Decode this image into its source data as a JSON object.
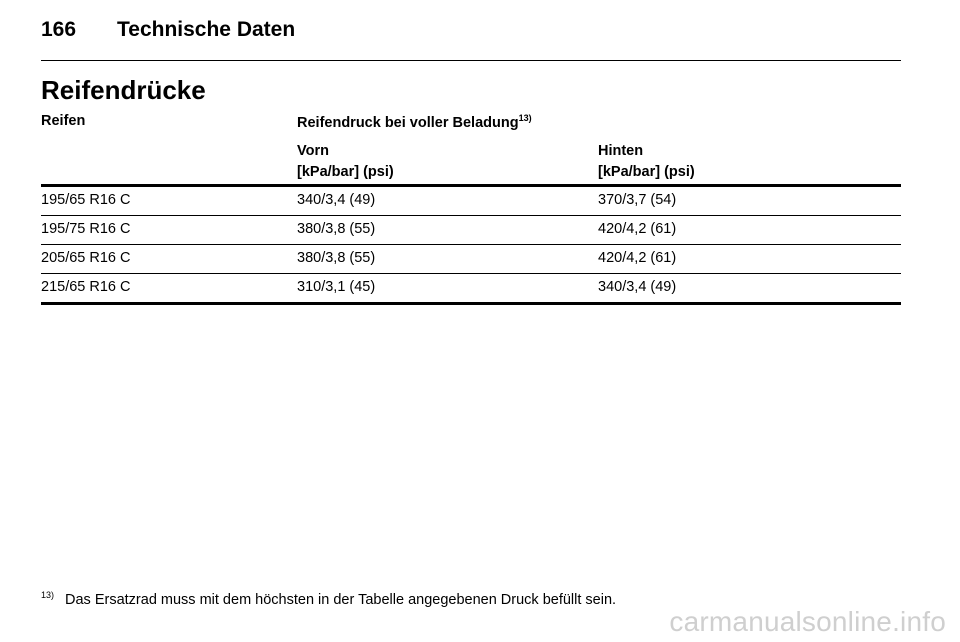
{
  "header": {
    "page_number": "166",
    "chapter": "Technische Daten"
  },
  "section": {
    "title": "Reifendrücke"
  },
  "table": {
    "col_tyre": "Reifen",
    "col_pressure": "Reifendruck bei voller Beladung",
    "col_pressure_note": "13)",
    "front": {
      "label": "Vorn",
      "unit": "[kPa/bar] (psi)"
    },
    "rear": {
      "label": "Hinten",
      "unit": "[kPa/bar] (psi)"
    },
    "rows": [
      {
        "tyre": "195/65 R16 C",
        "front": "340/3,4 (49)",
        "rear": "370/3,7 (54)"
      },
      {
        "tyre": "195/75 R16 C",
        "front": "380/3,8 (55)",
        "rear": "420/4,2 (61)"
      },
      {
        "tyre": "205/65 R16 C",
        "front": "380/3,8 (55)",
        "rear": "420/4,2 (61)"
      },
      {
        "tyre": "215/65 R16 C",
        "front": "310/3,1 (45)",
        "rear": "340/3,4 (49)"
      }
    ]
  },
  "footnote": {
    "mark": "13)",
    "text": "Das Ersatzrad muss mit dem höchsten in der Tabelle angegebenen Druck befüllt sein."
  },
  "watermark": "carmanualsonline.info"
}
